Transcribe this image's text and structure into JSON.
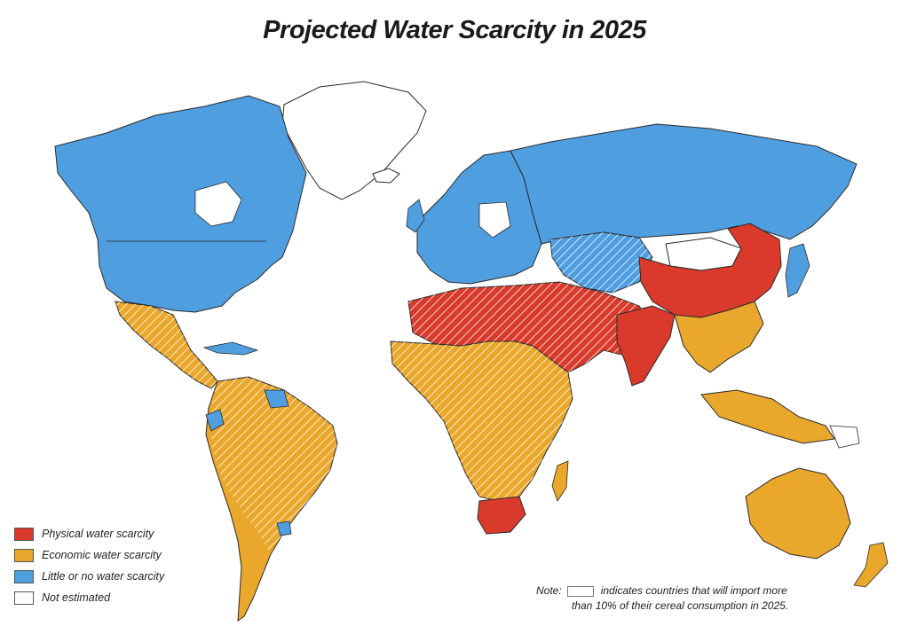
{
  "title": "Projected Water Scarcity in 2025",
  "colors": {
    "physical": "#d93a2b",
    "economic": "#e9a72b",
    "little": "#4f9ee0",
    "not_estimated": "#ffffff",
    "border": "#2a2a2a"
  },
  "legend": {
    "items": [
      {
        "label": "Physical water scarcity",
        "color": "#d93a2b"
      },
      {
        "label": "Economic water scarcity",
        "color": "#e9a72b"
      },
      {
        "label": "Little or no water scarcity",
        "color": "#4f9ee0"
      },
      {
        "label": "Not estimated",
        "color": "#ffffff"
      }
    ]
  },
  "note": {
    "label": "Note:",
    "line1": "indicates countries that will import more",
    "line2": "than 10% of their cereal consumption in 2025."
  }
}
